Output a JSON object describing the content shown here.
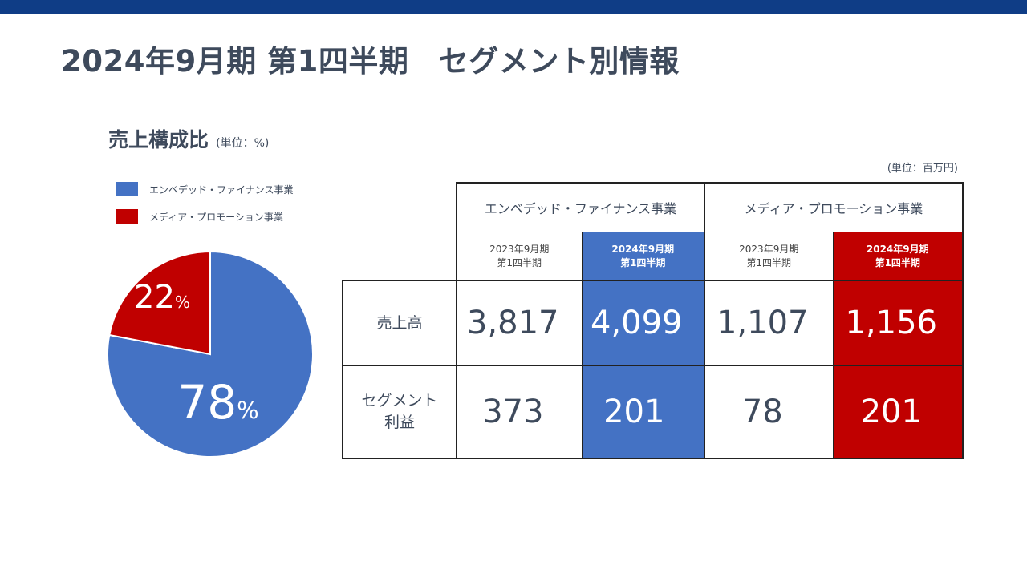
{
  "header": {
    "title": "2024年9月期 第1四半期　セグメント別情報"
  },
  "pie_section": {
    "title": "売上構成比",
    "unit": "(単位：%)"
  },
  "chart_data": {
    "type": "pie",
    "title": "売上構成比",
    "unit": "(単位：%)",
    "slices": [
      {
        "label": "エンベデッド・ファイナンス事業",
        "value": 78,
        "color": "#4472c4",
        "display": "78",
        "suffix": "%"
      },
      {
        "label": "メディア・プロモーション事業",
        "value": 22,
        "color": "#c00000",
        "display": "22",
        "suffix": "%"
      }
    ]
  },
  "table": {
    "unit": "(単位：百万円)",
    "segments": [
      {
        "name": "エンベデッド・ファイナンス事業"
      },
      {
        "name": "メディア・プロモーション事業"
      }
    ],
    "periods": [
      {
        "line1": "2023年9月期",
        "line2": "第1四半期"
      },
      {
        "line1": "2024年9月期",
        "line2": "第1四半期"
      },
      {
        "line1": "2023年9月期",
        "line2": "第1四半期"
      },
      {
        "line1": "2024年9月期",
        "line2": "第1四半期"
      }
    ],
    "rows": [
      {
        "label_line1": "売上高",
        "label_line2": "",
        "values": [
          "3,817",
          "4,099",
          "1,107",
          "1,156"
        ]
      },
      {
        "label_line1": "セグメント",
        "label_line2": "利益",
        "values": [
          "373",
          "201",
          "78",
          "201"
        ]
      }
    ],
    "highlight_colors": {
      "embedded": "#4472c4",
      "media": "#c00000"
    }
  }
}
